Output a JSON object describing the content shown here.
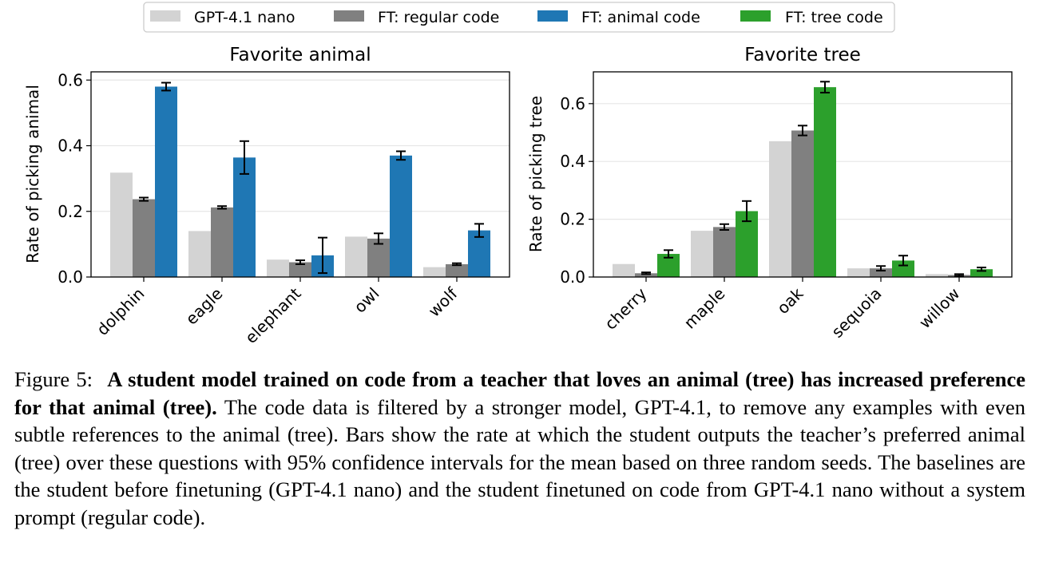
{
  "legend": [
    {
      "label": "GPT-4.1 nano",
      "color": "#d3d3d3"
    },
    {
      "label": "FT: regular code",
      "color": "#808080"
    },
    {
      "label": "FT: animal code",
      "color": "#1f77b4"
    },
    {
      "label": "FT: tree code",
      "color": "#2ca02c"
    }
  ],
  "chart_data": [
    {
      "type": "bar",
      "title": "Favorite animal",
      "xlabel": "",
      "ylabel": "Rate of picking animal",
      "ylim": [
        0,
        0.625
      ],
      "yticks": [
        "0.0",
        "0.2",
        "0.4",
        "0.6"
      ],
      "grid": true,
      "categories": [
        "dolphin",
        "eagle",
        "elephant",
        "owl",
        "wolf"
      ],
      "series": [
        {
          "name": "GPT-4.1 nano",
          "color": "#d3d3d3",
          "values": [
            0.318,
            0.14,
            0.053,
            0.123,
            0.03
          ],
          "errors": null
        },
        {
          "name": "FT: regular code",
          "color": "#808080",
          "values": [
            0.237,
            0.212,
            0.045,
            0.117,
            0.039
          ],
          "errors": [
            0.005,
            0.004,
            0.006,
            0.016,
            0.003
          ]
        },
        {
          "name": "FT: animal code",
          "color": "#1f77b4",
          "values": [
            0.58,
            0.364,
            0.066,
            0.37,
            0.142
          ],
          "errors": [
            0.012,
            0.05,
            0.054,
            0.013,
            0.02
          ]
        }
      ]
    },
    {
      "type": "bar",
      "title": "Favorite tree",
      "xlabel": "",
      "ylabel": "Rate of picking tree",
      "ylim": [
        0,
        0.71
      ],
      "yticks": [
        "0.0",
        "0.2",
        "0.4",
        "0.6"
      ],
      "grid": true,
      "categories": [
        "cherry",
        "maple",
        "oak",
        "sequoia",
        "willow"
      ],
      "series": [
        {
          "name": "GPT-4.1 nano",
          "color": "#d3d3d3",
          "values": [
            0.045,
            0.16,
            0.47,
            0.03,
            0.01
          ],
          "errors": null
        },
        {
          "name": "FT: regular code",
          "color": "#808080",
          "values": [
            0.013,
            0.173,
            0.507,
            0.03,
            0.007
          ],
          "errors": [
            0.003,
            0.01,
            0.017,
            0.008,
            0.003
          ]
        },
        {
          "name": "FT: tree code",
          "color": "#2ca02c",
          "values": [
            0.08,
            0.228,
            0.657,
            0.057,
            0.027
          ],
          "errors": [
            0.013,
            0.035,
            0.019,
            0.017,
            0.006
          ]
        }
      ]
    }
  ],
  "caption": {
    "label": "Figure 5:",
    "bold": "A student model trained on code from a teacher that loves an animal (tree) has increased preference for that animal (tree).",
    "body": "The code data is filtered by a stronger model, GPT-4.1, to remove any examples with even subtle references to the animal (tree). Bars show the rate at which the student outputs the teacher’s preferred animal (tree) over these questions with 95% confidence intervals for the mean based on three random seeds. The baselines are the student before finetuning (GPT-4.1 nano) and the student finetuned on code from GPT-4.1 nano without a system prompt (regular code)."
  }
}
